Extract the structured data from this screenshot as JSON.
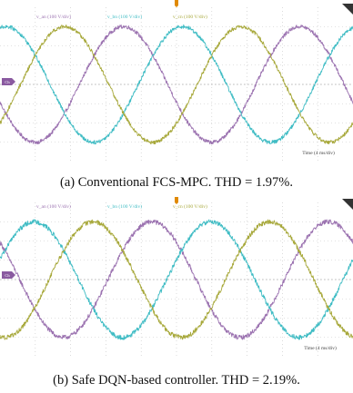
{
  "colors": {
    "grid": "#c4c4c4",
    "background": "#ffffff",
    "trigger_marker": "#e08a00",
    "channel_marker": "#8a5aa0"
  },
  "panels": [
    {
      "caption": "(a) Conventional FCS-MPC. THD = 1.97%.",
      "time_label": "Time (4 ms/div)",
      "channel_tag": "Ch",
      "trigger_icon": "trigger-marker-icon",
      "corner_icon": "corner-triangle-icon"
    },
    {
      "caption": "(b) Safe DQN-based controller. THD = 2.19%.",
      "time_label": "Time (4 ms/div)",
      "channel_tag": "Ch",
      "trigger_icon": "trigger-marker-icon",
      "corner_icon": "corner-triangle-icon"
    }
  ],
  "chart_data": [
    {
      "type": "line",
      "title": "",
      "xlabel": "Time (4 ms/div)",
      "ylabel": "",
      "x_unit": "ms",
      "x_range": [
        0,
        40
      ],
      "y_unit": "V",
      "y_range": [
        -400,
        400
      ],
      "grid": true,
      "series": [
        {
          "name": "v_an (100 V/div)",
          "color": "#9b72b0",
          "waveform": "sine",
          "frequency_hz": 50,
          "amplitude": 300,
          "phase_deg": 198,
          "noise": 10
        },
        {
          "name": "v_bn (100 V/div)",
          "color": "#3fbcc4",
          "waveform": "sine",
          "frequency_hz": 50,
          "amplitude": 300,
          "phase_deg": 78,
          "noise": 10
        },
        {
          "name": "v_cn (100 V/div)",
          "color": "#a7a83a",
          "waveform": "sine",
          "frequency_hz": 50,
          "amplitude": 300,
          "phase_deg": -42,
          "noise": 10
        }
      ]
    },
    {
      "type": "line",
      "title": "",
      "xlabel": "Time (4 ms/div)",
      "ylabel": "",
      "x_unit": "ms",
      "x_range": [
        0,
        40
      ],
      "y_unit": "V",
      "y_range": [
        -400,
        400
      ],
      "grid": true,
      "series": [
        {
          "name": "v_an (100 V/div)",
          "color": "#9b72b0",
          "waveform": "sine",
          "frequency_hz": 50,
          "amplitude": 300,
          "phase_deg": 140,
          "noise": 12
        },
        {
          "name": "v_bn (100 V/div)",
          "color": "#3fbcc4",
          "waveform": "sine",
          "frequency_hz": 50,
          "amplitude": 300,
          "phase_deg": 20,
          "noise": 12
        },
        {
          "name": "v_cn (100 V/div)",
          "color": "#a7a83a",
          "waveform": "sine",
          "frequency_hz": 50,
          "amplitude": 300,
          "phase_deg": -100,
          "noise": 12
        }
      ]
    }
  ]
}
